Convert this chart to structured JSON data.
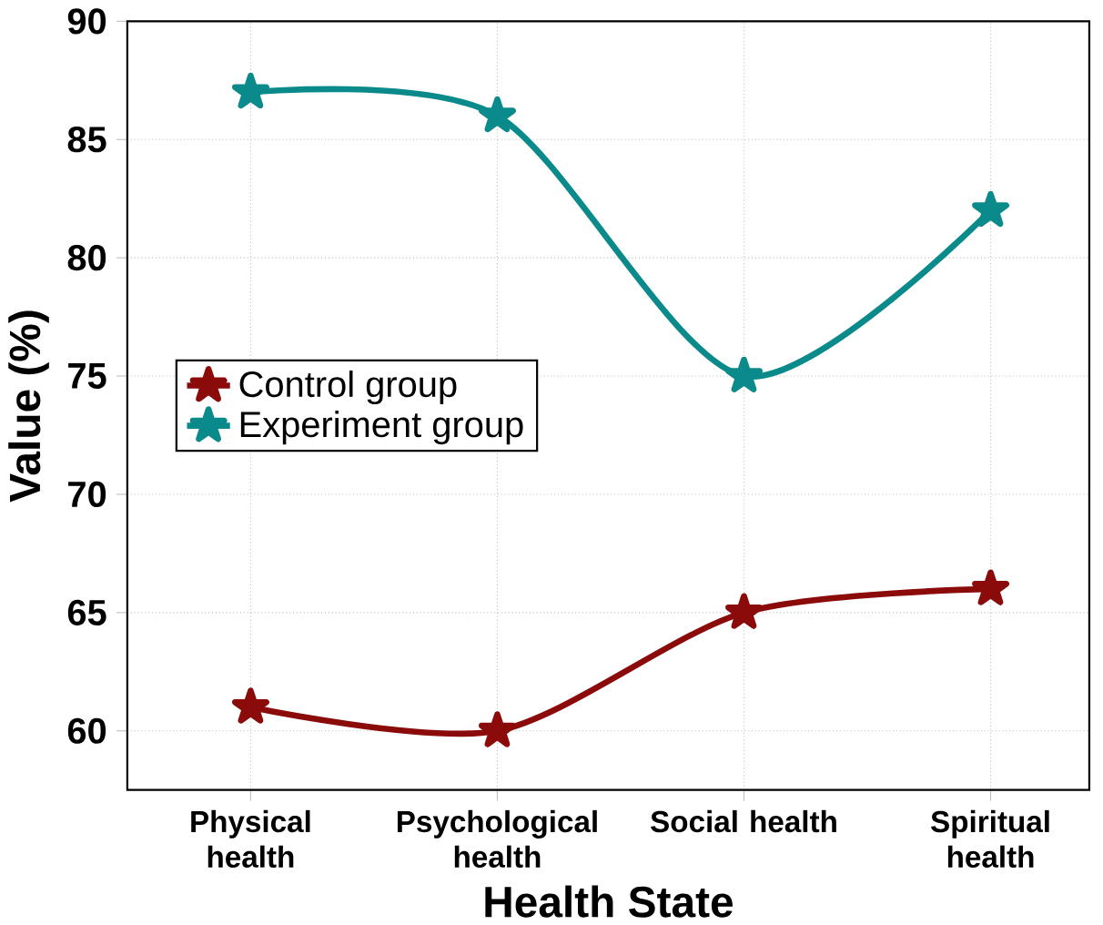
{
  "chart_data": {
    "type": "line",
    "xlabel": "Health State",
    "ylabel": "Value (%)",
    "categories": [
      "Physical health",
      "Psychological health",
      "Social health",
      "Spiritual health"
    ],
    "series": [
      {
        "name": "Control group",
        "color": "#8b0a0a",
        "values": [
          61,
          60,
          65,
          66
        ]
      },
      {
        "name": "Experiment  group",
        "color": "#0a8a8a",
        "values": [
          87,
          86,
          75,
          82
        ]
      }
    ],
    "ylim": [
      57.5,
      90
    ],
    "yticks": [
      60,
      65,
      70,
      75,
      80,
      85,
      90
    ],
    "grid": true,
    "legend": "left",
    "marker": "star",
    "line_style": "solid"
  }
}
